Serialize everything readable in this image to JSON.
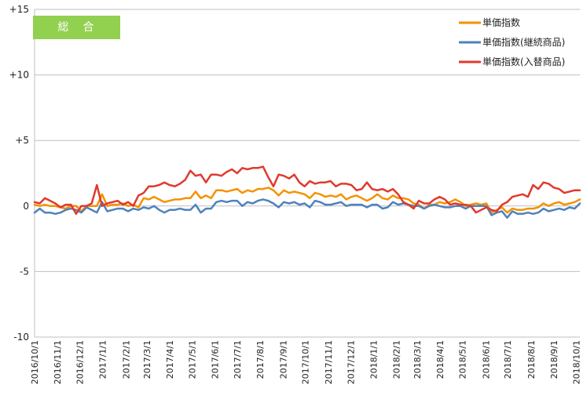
{
  "badge_text": "総　合",
  "colors": {
    "orange": "#f39200",
    "blue": "#4f81bd",
    "red": "#e03a2c",
    "badge": "#92d050",
    "grid": "#bfbfbf"
  },
  "chart_data": {
    "type": "line",
    "ylim": [
      -10,
      15
    ],
    "yticks": [
      {
        "value": 15,
        "label": "+15"
      },
      {
        "value": 10,
        "label": "+10"
      },
      {
        "value": 5,
        "label": "+5"
      },
      {
        "value": 0,
        "label": "0"
      },
      {
        "value": -5,
        "label": "-5"
      },
      {
        "value": -10,
        "label": "-10"
      }
    ],
    "grid": "horizontal",
    "legend_position": "top-right",
    "point_count": 106,
    "x_tick_labels": [
      {
        "index": 0,
        "label": "2016/10/1"
      },
      {
        "index": 4.4,
        "label": "2016/11/1"
      },
      {
        "index": 8.7,
        "label": "2016/12/1"
      },
      {
        "index": 13.1,
        "label": "2017/1/1"
      },
      {
        "index": 17.6,
        "label": "2017/2/1"
      },
      {
        "index": 21.6,
        "label": "2017/3/1"
      },
      {
        "index": 26.0,
        "label": "2017/4/1"
      },
      {
        "index": 30.3,
        "label": "2017/5/1"
      },
      {
        "index": 34.7,
        "label": "2017/6/1"
      },
      {
        "index": 39.0,
        "label": "2017/7/1"
      },
      {
        "index": 43.4,
        "label": "2017/8/1"
      },
      {
        "index": 47.9,
        "label": "2017/9/1"
      },
      {
        "index": 52.1,
        "label": "2017/10/1"
      },
      {
        "index": 56.6,
        "label": "2017/11/1"
      },
      {
        "index": 60.9,
        "label": "2017/12/1"
      },
      {
        "index": 65.3,
        "label": "2018/1/1"
      },
      {
        "index": 69.7,
        "label": "2018/2/1"
      },
      {
        "index": 73.7,
        "label": "2018/3/1"
      },
      {
        "index": 78.1,
        "label": "2018/4/1"
      },
      {
        "index": 82.4,
        "label": "2018/5/1"
      },
      {
        "index": 86.9,
        "label": "2018/6/1"
      },
      {
        "index": 91.1,
        "label": "2018/7/1"
      },
      {
        "index": 95.6,
        "label": "2018/8/1"
      },
      {
        "index": 100.0,
        "label": "2018/9/1"
      },
      {
        "index": 104.3,
        "label": "2018/10/1"
      }
    ],
    "series": [
      {
        "name": "単価指数",
        "color": "#f39200",
        "values": [
          0.1,
          0.0,
          0.1,
          0.0,
          0.0,
          -0.1,
          -0.2,
          0.0,
          0.0,
          -0.4,
          0.0,
          0.0,
          0.0,
          0.9,
          0.0,
          0.1,
          0.1,
          0.2,
          0.0,
          0.1,
          -0.1,
          0.6,
          0.5,
          0.7,
          0.5,
          0.3,
          0.4,
          0.5,
          0.5,
          0.6,
          0.6,
          1.1,
          0.6,
          0.8,
          0.6,
          1.2,
          1.2,
          1.1,
          1.2,
          1.3,
          1.0,
          1.2,
          1.1,
          1.3,
          1.3,
          1.4,
          1.2,
          0.8,
          1.2,
          1.0,
          1.1,
          1.0,
          0.9,
          0.6,
          1.0,
          0.9,
          0.7,
          0.8,
          0.7,
          0.9,
          0.5,
          0.7,
          0.8,
          0.6,
          0.4,
          0.6,
          0.9,
          0.6,
          0.5,
          0.8,
          0.6,
          0.6,
          0.5,
          0.2,
          0.1,
          -0.2,
          0.1,
          0.1,
          0.3,
          0.2,
          0.3,
          0.5,
          0.3,
          0.0,
          0.1,
          0.2,
          0.1,
          0.2,
          -0.5,
          -0.3,
          -0.1,
          -0.5,
          -0.2,
          -0.3,
          -0.3,
          -0.2,
          -0.2,
          -0.1,
          0.2,
          0.0,
          0.2,
          0.3,
          0.1,
          0.2,
          0.3,
          0.5
        ]
      },
      {
        "name": "単価指数(継続商品)",
        "color": "#4f81bd",
        "values": [
          -0.5,
          -0.2,
          -0.5,
          -0.5,
          -0.6,
          -0.5,
          -0.3,
          -0.2,
          -0.3,
          -0.5,
          -0.1,
          -0.3,
          -0.5,
          0.3,
          -0.4,
          -0.3,
          -0.2,
          -0.2,
          -0.4,
          -0.2,
          -0.3,
          -0.1,
          -0.2,
          0.0,
          -0.3,
          -0.5,
          -0.3,
          -0.3,
          -0.2,
          -0.3,
          -0.3,
          0.1,
          -0.5,
          -0.2,
          -0.2,
          0.3,
          0.4,
          0.3,
          0.4,
          0.4,
          0.0,
          0.3,
          0.2,
          0.4,
          0.5,
          0.4,
          0.2,
          -0.1,
          0.3,
          0.2,
          0.3,
          0.1,
          0.2,
          -0.1,
          0.4,
          0.3,
          0.1,
          0.1,
          0.2,
          0.3,
          0.0,
          0.1,
          0.1,
          0.1,
          -0.1,
          0.1,
          0.1,
          -0.2,
          -0.1,
          0.3,
          0.1,
          0.2,
          0.1,
          0.0,
          0.0,
          -0.2,
          0.0,
          0.1,
          0.0,
          -0.1,
          -0.1,
          0.0,
          0.0,
          -0.2,
          0.0,
          0.0,
          0.0,
          0.0,
          -0.7,
          -0.5,
          -0.4,
          -0.9,
          -0.4,
          -0.6,
          -0.6,
          -0.5,
          -0.6,
          -0.5,
          -0.2,
          -0.4,
          -0.3,
          -0.2,
          -0.3,
          -0.1,
          -0.2,
          0.2
        ]
      },
      {
        "name": "単価指数(入替商品)",
        "color": "#e03a2c",
        "values": [
          0.3,
          0.2,
          0.6,
          0.4,
          0.2,
          -0.1,
          0.1,
          0.1,
          -0.6,
          0.0,
          0.0,
          0.2,
          1.6,
          0.0,
          0.2,
          0.3,
          0.4,
          0.1,
          0.3,
          0.0,
          0.8,
          1.0,
          1.5,
          1.5,
          1.6,
          1.8,
          1.6,
          1.5,
          1.7,
          2.0,
          2.7,
          2.3,
          2.4,
          1.8,
          2.4,
          2.4,
          2.3,
          2.6,
          2.8,
          2.5,
          2.9,
          2.8,
          2.9,
          2.9,
          3.0,
          2.2,
          1.5,
          2.4,
          2.3,
          2.1,
          2.4,
          1.8,
          1.5,
          1.9,
          1.7,
          1.8,
          1.8,
          1.9,
          1.5,
          1.7,
          1.7,
          1.6,
          1.2,
          1.3,
          1.8,
          1.3,
          1.2,
          1.3,
          1.1,
          1.3,
          0.9,
          0.3,
          0.1,
          -0.2,
          0.4,
          0.2,
          0.2,
          0.5,
          0.7,
          0.5,
          0.1,
          0.2,
          0.1,
          0.1,
          0.0,
          -0.5,
          -0.3,
          -0.1,
          -0.3,
          -0.4,
          0.1,
          0.3,
          0.7,
          0.8,
          0.9,
          0.7,
          1.6,
          1.3,
          1.8,
          1.7,
          1.4,
          1.3,
          1.0,
          1.1,
          1.2,
          1.2
        ]
      }
    ]
  }
}
